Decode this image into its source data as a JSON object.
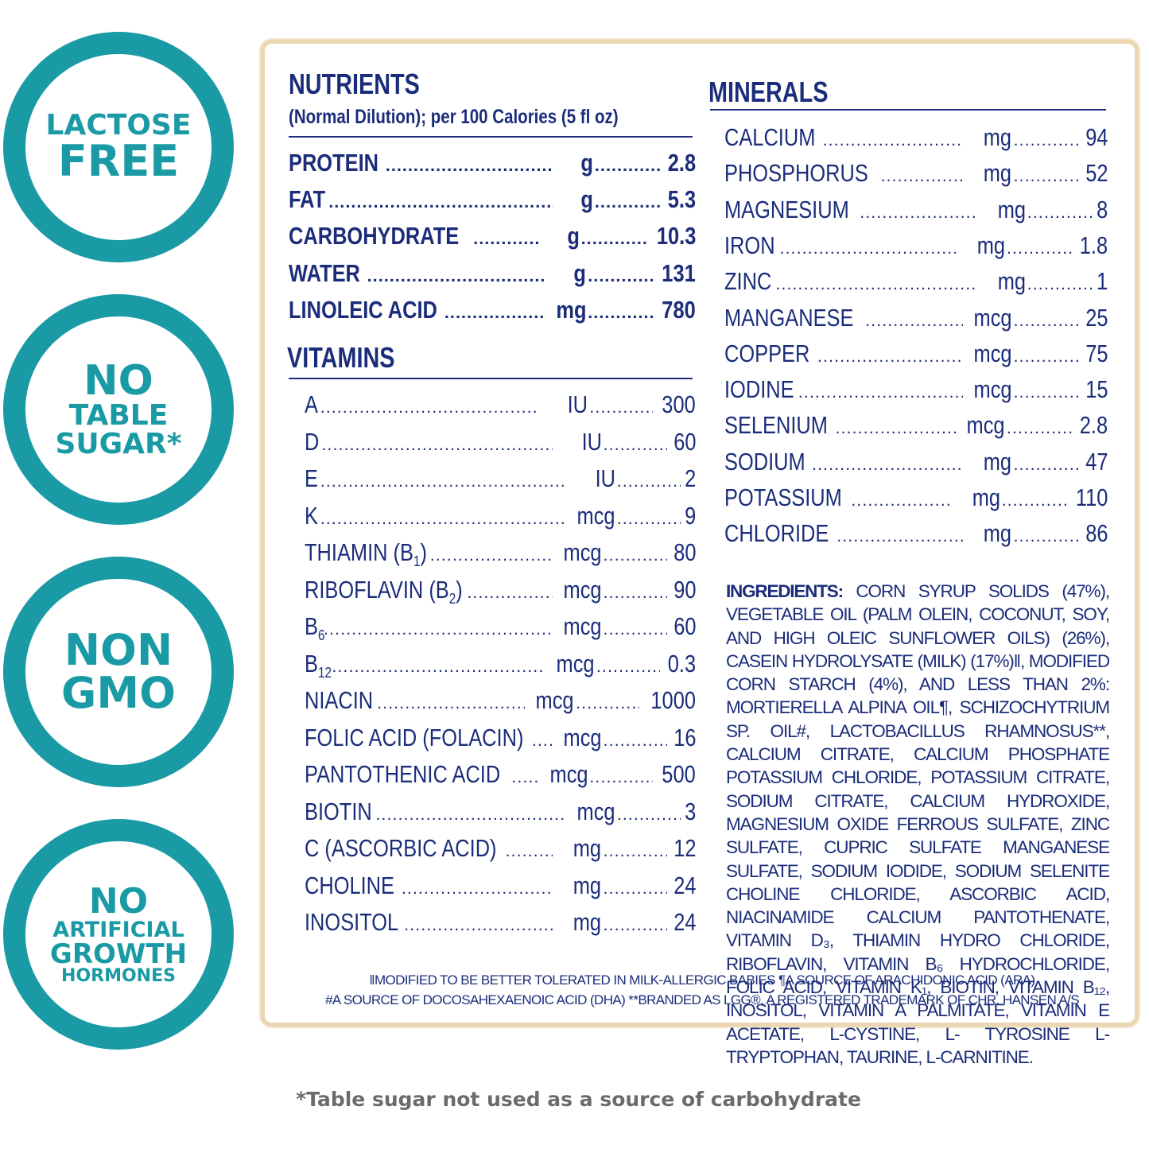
{
  "badges": [
    {
      "lines": [
        "LACTOSE",
        "FREE"
      ]
    },
    {
      "lines": [
        "NO",
        "TABLE",
        "SUGAR*"
      ]
    },
    {
      "lines": [
        "NON",
        "GMO"
      ]
    },
    {
      "lines": [
        "NO",
        "ARTIFICIAL",
        "GROWTH",
        "HORMONES"
      ]
    }
  ],
  "nutrients": {
    "title": "NUTRIENTS",
    "subtitle": "(Normal Dilution); per 100 Calories (5 fl oz)",
    "rows": [
      {
        "name": "PROTEIN",
        "unit": "g",
        "value": "2.8"
      },
      {
        "name": "FAT",
        "unit": "g",
        "value": "5.3"
      },
      {
        "name": "CARBOHYDRATE",
        "unit": "g",
        "value": "10.3"
      },
      {
        "name": "WATER",
        "unit": "g",
        "value": "131"
      },
      {
        "name": "LINOLEIC ACID",
        "unit": "mg",
        "value": "780"
      }
    ]
  },
  "vitamins": {
    "title": "VITAMINS",
    "rows": [
      {
        "name": "A",
        "unit": "IU",
        "value": "300"
      },
      {
        "name": "D",
        "unit": "IU",
        "value": "60"
      },
      {
        "name": "E",
        "unit": "IU",
        "value": "2"
      },
      {
        "name": "K",
        "unit": "mcg",
        "value": "9"
      },
      {
        "name": "THIAMIN (B",
        "sub": "1",
        "after": ")",
        "unit": "mcg",
        "value": "80"
      },
      {
        "name": "RIBOFLAVIN (B",
        "sub": "2",
        "after": ")",
        "unit": "mcg",
        "value": "90"
      },
      {
        "name": "B",
        "sub": "6",
        "after": "",
        "unit": "mcg",
        "value": "60"
      },
      {
        "name": "B",
        "sub": "12",
        "after": "",
        "unit": "mcg",
        "value": "0.3"
      },
      {
        "name": "NIACIN",
        "unit": "mcg",
        "value": "1000"
      },
      {
        "name": "FOLIC ACID (FOLACIN)",
        "unit": "mcg",
        "value": "16"
      },
      {
        "name": "PANTOTHENIC ACID",
        "unit": "mcg",
        "value": "500"
      },
      {
        "name": "BIOTIN",
        "unit": "mcg",
        "value": "3"
      },
      {
        "name": "C (ASCORBIC ACID)",
        "unit": "mg",
        "value": "12"
      },
      {
        "name": "CHOLINE",
        "unit": "mg",
        "value": "24"
      },
      {
        "name": "INOSITOL",
        "unit": "mg",
        "value": "24"
      }
    ]
  },
  "minerals": {
    "title": "MINERALS",
    "rows": [
      {
        "name": "CALCIUM",
        "unit": "mg",
        "value": "94"
      },
      {
        "name": "PHOSPHORUS",
        "unit": "mg",
        "value": "52"
      },
      {
        "name": "MAGNESIUM",
        "unit": "mg",
        "value": "8"
      },
      {
        "name": "IRON",
        "unit": "mg",
        "value": "1.8"
      },
      {
        "name": "ZINC",
        "unit": "mg",
        "value": "1"
      },
      {
        "name": "MANGANESE",
        "unit": "mcg",
        "value": "25"
      },
      {
        "name": "COPPER",
        "unit": "mcg",
        "value": "75"
      },
      {
        "name": "IODINE",
        "unit": "mcg",
        "value": "15"
      },
      {
        "name": "SELENIUM",
        "unit": "mcg",
        "value": "2.8"
      },
      {
        "name": "SODIUM",
        "unit": "mg",
        "value": "47"
      },
      {
        "name": "POTASSIUM",
        "unit": "mg",
        "value": "110"
      },
      {
        "name": "CHLORIDE",
        "unit": "mg",
        "value": "86"
      }
    ]
  },
  "ingredients": {
    "label": "INGREDIENTS:",
    "text": " CORN SYRUP SOLIDS (47%), VEGETABLE OIL (PALM OLEIN, COCONUT, SOY, AND HIGH OLEIC SUNFLOWER OILS) (26%), CASEIN HYDROLYSATE (MILK) (17%)‖, MODIFIED CORN STARCH (4%), AND LESS THAN 2%: MORTIERELLA ALPINA OIL¶, SCHIZOCHYTRIUM SP. OIL#, LACTOBACILLUS RHAMNOSUS**, CALCIUM CITRATE, CALCIUM PHOSPHATE POTASSIUM CHLORIDE, POTASSIUM CITRATE, SODIUM CITRATE, CALCIUM HYDROXIDE, MAGNESIUM OXIDE FERROUS SULFATE, ZINC SULFATE, CUPRIC SULFATE MANGANESE SULFATE, SODIUM IODIDE, SODIUM SELENITE CHOLINE CHLORIDE, ASCORBIC ACID, NIACINAMIDE CALCIUM PANTOTHENATE, VITAMIN D₃, THIAMIN HYDRO CHLORIDE, RIBOFLAVIN, VITAMIN B₆ HYDROCHLORIDE, FOLIC ACID, VITAMIN K₁, BIOTIN, VITAMIN B₁₂, INOSITOL, VITAMIN A PALMITATE, VITAMIN E ACETATE, L-CYSTINE, L- TYROSINE L-TRYPTOPHAN, TAURINE, L-CARNITINE."
  },
  "footnotes": {
    "line1": "‖MODIFIED TO BE BETTER TOLERATED IN MILK-ALLERGIC BABIES ¶A SOURCE OF ARACHIDONIC ACID (ARA)",
    "line2": "#A SOURCE OF DOCOSAHEXAENOIC ACID (DHA) **BRANDED AS LGG®, A REGISTERED TRADEMARK OF CHR. HANSEN A/S"
  },
  "bottom_note": "*Table sugar not used as a source of carbohydrate",
  "colors": {
    "teal": "#1a9aa5",
    "navy": "#1b2d7a",
    "panel_border": "#ead6b1",
    "note_gray": "#6b6b6b"
  }
}
